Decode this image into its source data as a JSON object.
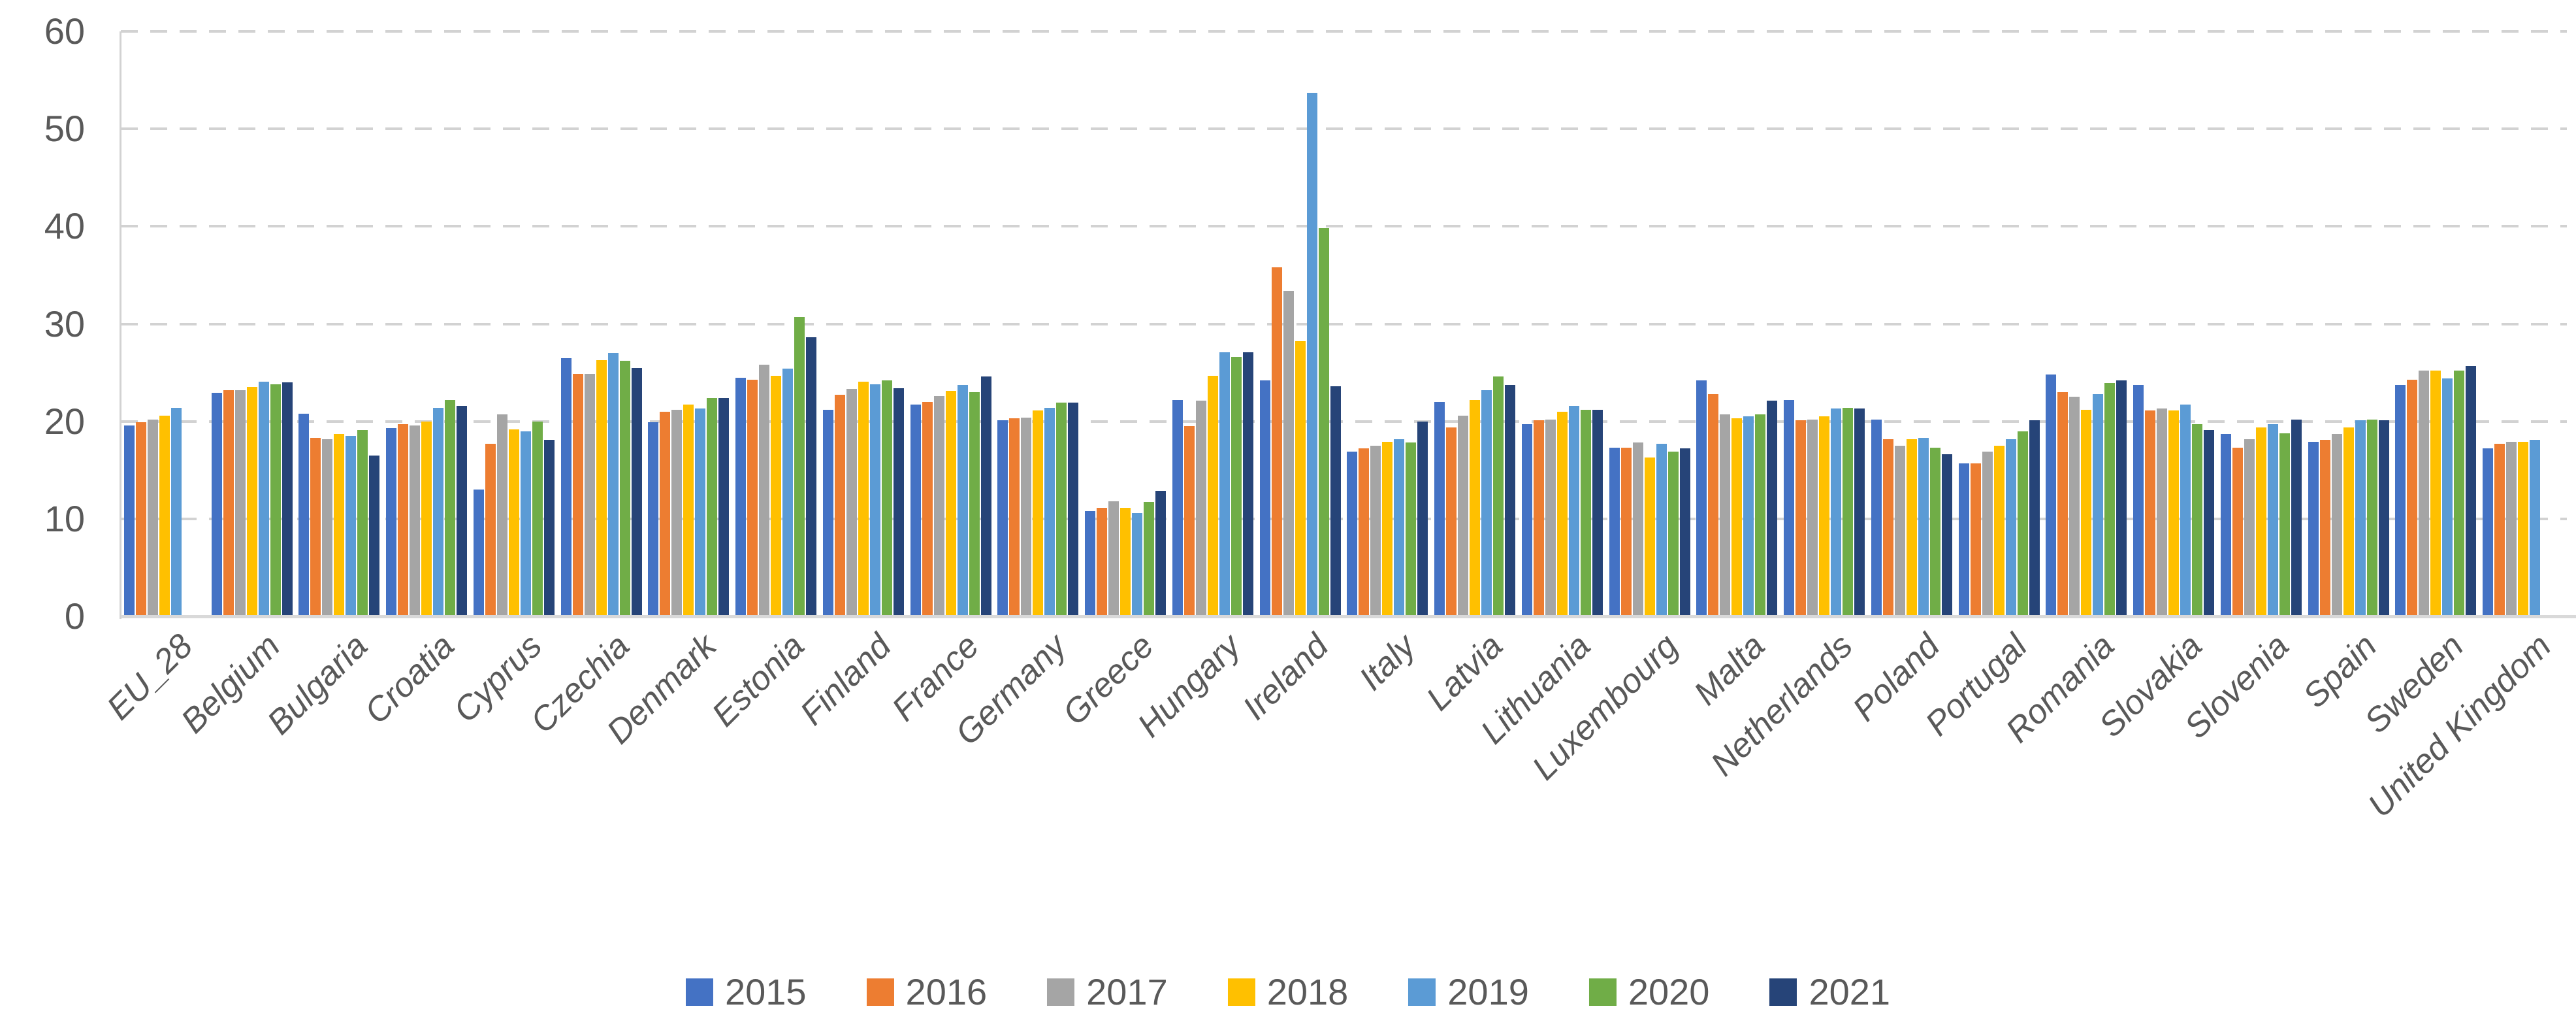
{
  "chart_data": {
    "type": "bar",
    "categories": [
      "EU_28",
      "Belgium",
      "Bulgaria",
      "Croatia",
      "Cyprus",
      "Czechia",
      "Denmark",
      "Estonia",
      "Finland",
      "France",
      "Germany",
      "Greece",
      "Hungary",
      "Ireland",
      "Italy",
      "Latvia",
      "Lithuania",
      "Luxembourg",
      "Malta",
      "Netherlands",
      "Poland",
      "Portugal",
      "Romania",
      "Slovakia",
      "Slovenia",
      "Spain",
      "Sweden",
      "United Kingdom"
    ],
    "series": [
      {
        "name": "2015",
        "color": "#4472C4",
        "values": [
          19.6,
          22.9,
          20.8,
          19.3,
          13.0,
          26.5,
          19.9,
          24.5,
          21.2,
          21.7,
          20.1,
          10.8,
          22.2,
          24.2,
          16.9,
          22.0,
          19.7,
          17.3,
          24.2,
          22.2,
          20.2,
          15.7,
          24.8,
          23.7,
          18.7,
          17.9,
          23.7,
          17.2
        ]
      },
      {
        "name": "2016",
        "color": "#ED7D31",
        "values": [
          19.9,
          23.2,
          18.3,
          19.7,
          17.7,
          24.9,
          21.0,
          24.3,
          22.7,
          22.0,
          20.3,
          11.1,
          19.5,
          35.8,
          17.2,
          19.4,
          20.1,
          17.3,
          22.8,
          20.1,
          18.2,
          15.7,
          23.0,
          21.1,
          17.3,
          18.1,
          24.3,
          17.7
        ]
      },
      {
        "name": "2017",
        "color": "#A5A5A5",
        "values": [
          20.2,
          23.2,
          18.2,
          19.6,
          20.7,
          24.9,
          21.2,
          25.8,
          23.3,
          22.6,
          20.4,
          11.8,
          22.1,
          33.4,
          17.5,
          20.6,
          20.2,
          17.8,
          20.7,
          20.2,
          17.5,
          16.9,
          22.5,
          21.3,
          18.2,
          18.7,
          25.2,
          17.9
        ]
      },
      {
        "name": "2018",
        "color": "#FFC000",
        "values": [
          20.6,
          23.5,
          18.7,
          20.0,
          19.2,
          26.3,
          21.7,
          24.7,
          24.1,
          23.1,
          21.1,
          11.1,
          24.7,
          28.2,
          17.9,
          22.2,
          21.0,
          16.3,
          20.3,
          20.5,
          18.2,
          17.5,
          21.2,
          21.1,
          19.4,
          19.4,
          25.2,
          17.9
        ]
      },
      {
        "name": "2019",
        "color": "#5B9BD5",
        "values": [
          21.4,
          24.1,
          18.5,
          21.4,
          19.0,
          27.0,
          21.3,
          25.4,
          23.8,
          23.7,
          21.4,
          10.6,
          27.1,
          53.7,
          18.2,
          23.2,
          21.6,
          17.7,
          20.5,
          21.3,
          18.3,
          18.2,
          22.8,
          21.7,
          19.7,
          20.1,
          24.4,
          18.1
        ]
      },
      {
        "name": "2020",
        "color": "#70AD47",
        "values": [
          null,
          23.8,
          19.1,
          22.2,
          20.0,
          26.2,
          22.4,
          30.7,
          24.2,
          23.0,
          21.9,
          11.7,
          26.6,
          39.8,
          17.8,
          24.6,
          21.2,
          16.9,
          20.7,
          21.4,
          17.3,
          19.0,
          23.9,
          19.7,
          18.8,
          20.2,
          25.2,
          null
        ]
      },
      {
        "name": "2021",
        "color": "#264478",
        "values": [
          null,
          24.0,
          16.5,
          21.6,
          18.1,
          25.5,
          22.4,
          28.6,
          23.4,
          24.6,
          21.9,
          12.9,
          27.1,
          23.6,
          20.0,
          23.7,
          21.2,
          17.2,
          22.1,
          21.3,
          16.6,
          20.1,
          24.2,
          19.1,
          20.2,
          20.1,
          25.7,
          null
        ]
      }
    ],
    "ylim": [
      0,
      60
    ],
    "yticks": [
      0,
      10,
      20,
      30,
      40,
      50,
      60
    ],
    "ytick_labels": [
      "0",
      "10",
      "20",
      "30",
      "40",
      "50",
      "60"
    ],
    "grid": "horizontal-dashed",
    "legend_position": "bottom",
    "axis_text_color": "#595959",
    "gridline_color": "#d2d2d2"
  }
}
